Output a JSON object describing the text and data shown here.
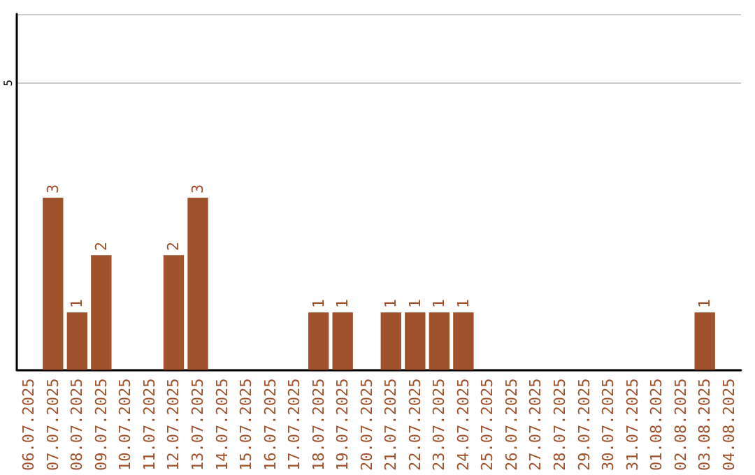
{
  "chart_data": {
    "type": "bar",
    "categories": [
      "06.07.2025",
      "07.07.2025",
      "08.07.2025",
      "09.07.2025",
      "10.07.2025",
      "11.07.2025",
      "12.07.2025",
      "13.07.2025",
      "14.07.2025",
      "15.07.2025",
      "16.07.2025",
      "17.07.2025",
      "18.07.2025",
      "19.07.2025",
      "20.07.2025",
      "21.07.2025",
      "22.07.2025",
      "23.07.2025",
      "24.07.2025",
      "25.07.2025",
      "26.07.2025",
      "27.07.2025",
      "28.07.2025",
      "29.07.2025",
      "30.07.2025",
      "31.07.2025",
      "01.08.2025",
      "02.08.2025",
      "03.08.2025",
      "04.08.2025"
    ],
    "values": [
      0,
      3,
      1,
      2,
      0,
      0,
      2,
      3,
      0,
      0,
      0,
      0,
      1,
      1,
      0,
      1,
      1,
      1,
      1,
      0,
      0,
      0,
      0,
      0,
      0,
      0,
      0,
      0,
      1,
      0
    ],
    "value_labels": [
      null,
      "3",
      "1",
      "2",
      null,
      null,
      "2",
      "3",
      null,
      null,
      null,
      null,
      "1",
      "1",
      null,
      "1",
      "1",
      "1",
      "1",
      null,
      null,
      null,
      null,
      null,
      null,
      null,
      null,
      null,
      "1",
      null
    ],
    "color": "#a0522d",
    "ylim": [
      0,
      6.2
    ],
    "yticks": [
      5
    ],
    "grid": "y"
  }
}
